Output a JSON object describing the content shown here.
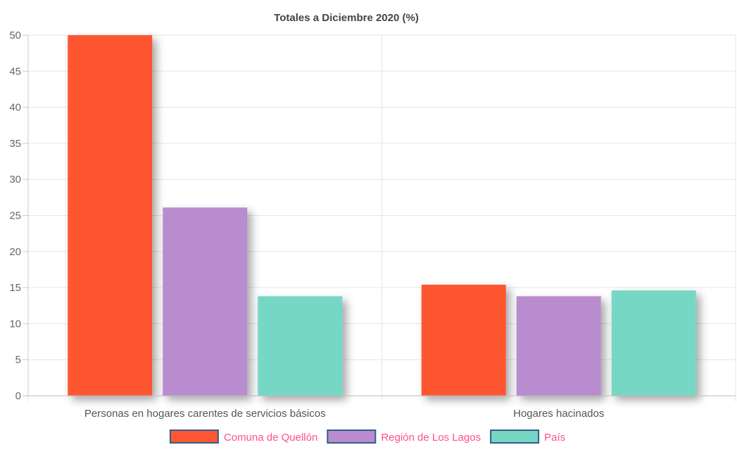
{
  "chart_data": {
    "type": "bar",
    "title": "Totales a Diciembre 2020 (%)",
    "categories": [
      "Personas en hogares carentes de servicios básicos",
      "Hogares hacinados"
    ],
    "series": [
      {
        "name": "Comuna de Quellón",
        "values": [
          50.0,
          15.4
        ],
        "color": "#ff5733"
      },
      {
        "name": "Región de Los Lagos",
        "values": [
          26.1,
          13.8
        ],
        "color": "#b98ccf"
      },
      {
        "name": "País",
        "values": [
          13.8,
          14.6
        ],
        "color": "#76d7c4"
      }
    ],
    "y_ticks": [
      0,
      5,
      10,
      15,
      20,
      25,
      30,
      35,
      40,
      45,
      50
    ],
    "ylim": [
      0,
      50
    ],
    "grid": true,
    "legend": "bottom-center",
    "legend_text_color": "#ff4f8b",
    "legend_border_color": "#2f5f8a"
  }
}
